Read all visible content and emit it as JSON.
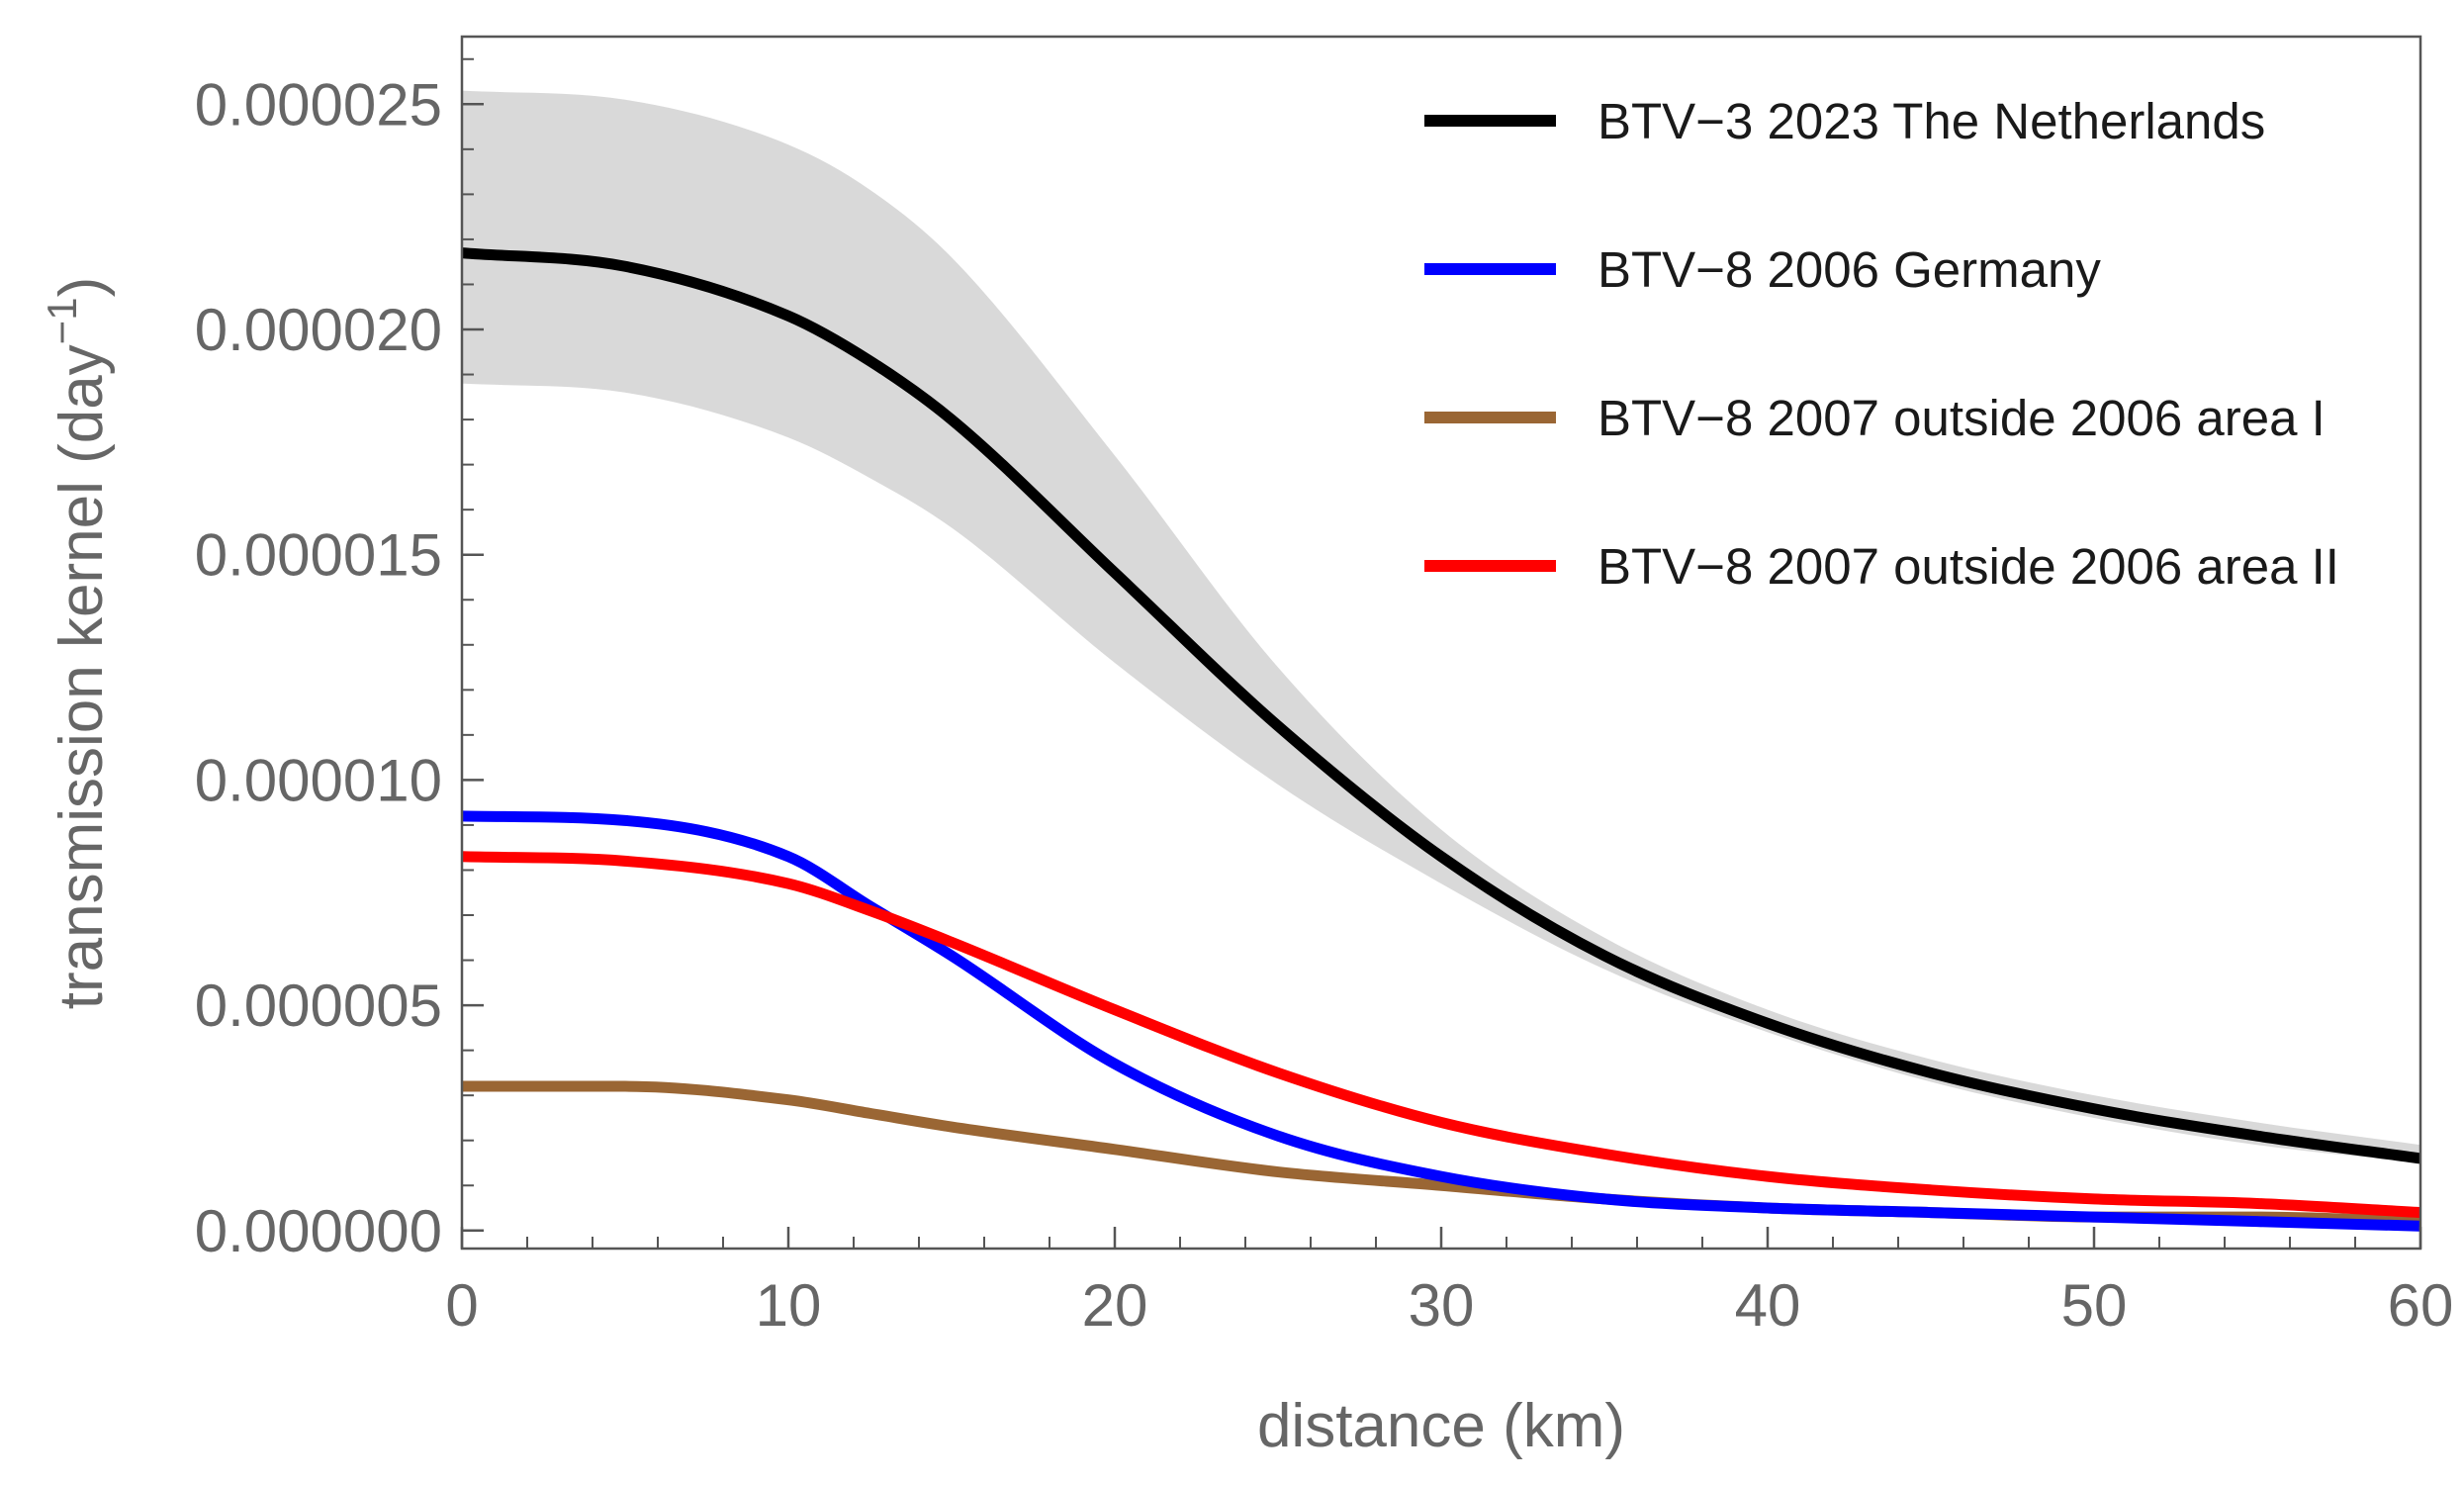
{
  "chart_data": {
    "type": "line",
    "title": "",
    "xlabel": "distance (km)",
    "ylabel": {
      "prefix": "transmission kernel (day",
      "superscript": "−1",
      "suffix": ")"
    },
    "xlim": [
      0,
      60
    ],
    "ylim": [
      -4e-07,
      2.65e-05
    ],
    "x_ticks": [
      0,
      10,
      20,
      30,
      40,
      50,
      60
    ],
    "x_tick_labels": [
      "0",
      "10",
      "20",
      "30",
      "40",
      "50",
      "60"
    ],
    "y_ticks": [
      0,
      5e-06,
      1e-05,
      1.5e-05,
      2e-05,
      2.5e-05
    ],
    "y_tick_labels": [
      "0.000000",
      "0.000005",
      "0.000010",
      "0.000015",
      "0.000020",
      "0.000025"
    ],
    "grid": false,
    "legend_position": "top-right",
    "x": [
      0,
      5,
      10,
      12.5,
      15,
      20,
      25,
      30,
      35,
      40,
      45,
      50,
      55,
      60
    ],
    "series": [
      {
        "name": "BTV−3 2023 The Netherlands",
        "color": "#000000",
        "values": [
          2.17e-05,
          2.14e-05,
          2.03e-05,
          1.93e-05,
          1.8e-05,
          1.46e-05,
          1.12e-05,
          8.3e-06,
          6.1e-06,
          4.6e-06,
          3.5e-06,
          2.7e-06,
          2.1e-06,
          1.6e-06
        ],
        "band_upper": [
          2.53e-05,
          2.51e-05,
          2.41e-05,
          2.31e-05,
          2.16e-05,
          1.72e-05,
          1.25e-05,
          8.9e-06,
          6.5e-06,
          4.9e-06,
          3.8e-06,
          3e-06,
          2.4e-06,
          1.9e-06
        ],
        "band_lower": [
          1.88e-05,
          1.86e-05,
          1.76e-05,
          1.67e-05,
          1.56e-05,
          1.26e-05,
          9.9e-06,
          7.7e-06,
          5.8e-06,
          4.4e-06,
          3.3e-06,
          2.5e-06,
          1.9e-06,
          1.5e-06
        ]
      },
      {
        "name": "BTV−8 2006 Germany",
        "color": "#0000ff",
        "values": [
          9.2e-06,
          9.1e-06,
          8.3e-06,
          7.2e-06,
          6.1e-06,
          3.7e-06,
          2.1e-06,
          1.2e-06,
          7e-07,
          5e-07,
          4e-07,
          3e-07,
          2e-07,
          1e-07
        ]
      },
      {
        "name": "BTV−8 2007 outside 2006 area I",
        "color": "#9a6634",
        "values": [
          3.2e-06,
          3.2e-06,
          2.9e-06,
          2.6e-06,
          2.3e-06,
          1.8e-06,
          1.3e-06,
          1e-06,
          7e-07,
          5e-07,
          4e-07,
          3e-07,
          3e-07,
          2e-07
        ]
      },
      {
        "name": "BTV−8 2007 outside 2006 area II",
        "color": "#ff0000",
        "values": [
          8.3e-06,
          8.2e-06,
          7.7e-06,
          7.1e-06,
          6.4e-06,
          4.9e-06,
          3.5e-06,
          2.4e-06,
          1.7e-06,
          1.2e-06,
          9e-07,
          7e-07,
          6e-07,
          4e-07
        ]
      }
    ]
  },
  "colors": {
    "axis": "#555555",
    "tick_label": "#666666",
    "band": "#d9d9d9"
  }
}
